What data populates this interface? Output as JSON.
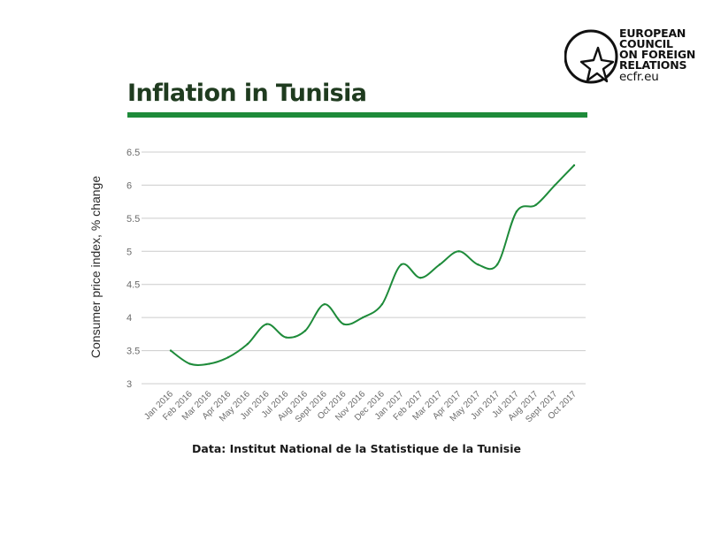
{
  "logo": {
    "lines": [
      "EUROPEAN",
      "COUNCIL",
      "ON FOREIGN",
      "RELATIONS"
    ],
    "url": "ecfr.eu",
    "icon": "star-in-circle-icon"
  },
  "source": "Data: Institut National de la Statistique de la Tunisie",
  "colors": {
    "line": "#1e8b3a",
    "rule": "#1e8b3a",
    "grid": "#cccccc",
    "title": "#1f3b1f"
  },
  "chart_data": {
    "type": "line",
    "title": "Inflation in Tunisia",
    "xlabel": "",
    "ylabel": "Consumer price index, % change",
    "ylim": [
      3,
      6.5
    ],
    "yticks": [
      "6.5",
      "6",
      "5.5",
      "5",
      "4.5",
      "4",
      "3.5",
      "3"
    ],
    "grid": true,
    "categories": [
      "Jan 2016",
      "Feb 2016",
      "Mar 2016",
      "Apr 2016",
      "May 2016",
      "Jun 2016",
      "Jul 2016",
      "Aug 2016",
      "Sept 2016",
      "Oct 2016",
      "Nov 2016",
      "Dec 2016",
      "Jan 2017",
      "Feb 2017",
      "Mar 2017",
      "Apr 2017",
      "May 2017",
      "Jun 2017",
      "Jul 2017",
      "Aug 2017",
      "Sept 2017",
      "Oct 2017"
    ],
    "series": [
      {
        "values": [
          3.5,
          3.3,
          3.3,
          3.4,
          3.6,
          3.9,
          3.7,
          3.8,
          4.2,
          3.9,
          4.0,
          4.2,
          4.8,
          4.6,
          4.8,
          5.0,
          4.8,
          4.8,
          5.6,
          5.7,
          6.0,
          6.3
        ]
      }
    ]
  }
}
